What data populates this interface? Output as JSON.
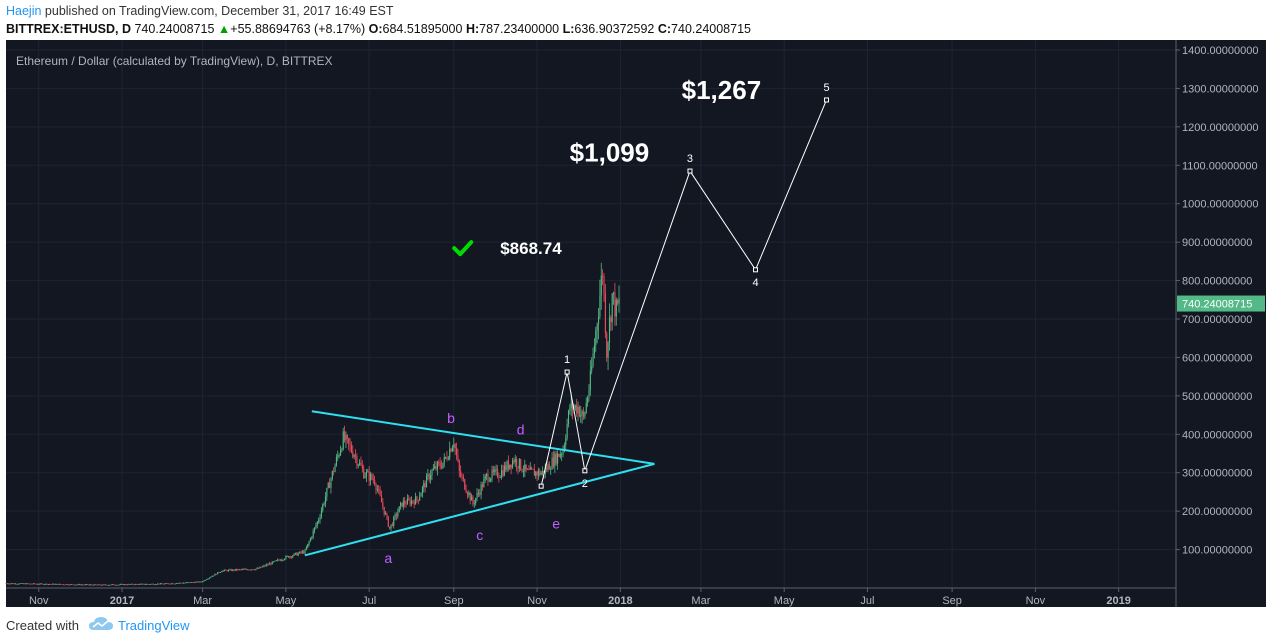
{
  "header": {
    "author": "Haejin",
    "published": " published on TradingView.com, December 31, 2017 16:49 EST",
    "symbol": "BITTREX:ETHUSD, D",
    "last": "740.24008715",
    "change": "+55.88694763 (+8.17%)",
    "o_label": "O:",
    "o_value": "684.51895000",
    "h_label": "H:",
    "h_value": "787.23400000",
    "l_label": "L:",
    "l_value": "636.90372592",
    "c_label": "C:",
    "c_value": "740.24008715"
  },
  "footer": {
    "created": "Created with",
    "brand": "TradingView"
  },
  "colors": {
    "background": "#131722",
    "up": "#53b987",
    "down": "#eb4d5c",
    "trendline": "#2ee0f0",
    "wave": "#ffffff",
    "letters": "#c060ff",
    "check": "#00dd00",
    "price_tag": "#53b987"
  },
  "icons": [
    "checkmark-icon",
    "tradingview-cloud-icon",
    "up-triangle-icon"
  ],
  "chart_data": {
    "type": "candlestick",
    "title": "Ethereum / Dollar (calculated by TradingView), D, BITTREX",
    "ylim": [
      0,
      1400
    ],
    "y_ticks": [
      100,
      200,
      300,
      400,
      500,
      600,
      700,
      800,
      900,
      1000,
      1100,
      1200,
      1300,
      1400
    ],
    "y_tick_labels": [
      "100.00000000",
      "200.00000000",
      "300.00000000",
      "400.00000000",
      "500.00000000",
      "600.00000000",
      "700.00000000",
      "800.00000000",
      "900.00000000",
      "1000.00000000",
      "1100.00000000",
      "1200.00000000",
      "1300.00000000",
      "1400.00000000"
    ],
    "x_ticks": [
      "2016-11-01",
      "2017-01-01",
      "2017-03-01",
      "2017-05-01",
      "2017-07-01",
      "2017-09-01",
      "2017-11-01",
      "2018-01-01",
      "2018-03-01",
      "2018-05-01",
      "2018-07-01",
      "2018-09-01",
      "2018-11-01",
      "2019-01-01"
    ],
    "x_tick_labels": [
      "Nov",
      "2017",
      "Mar",
      "May",
      "Jul",
      "Sep",
      "Nov",
      "2018",
      "Mar",
      "May",
      "Jul",
      "Sep",
      "Nov",
      "2019"
    ],
    "x_tick_bold": [
      false,
      true,
      false,
      false,
      false,
      false,
      false,
      true,
      false,
      false,
      false,
      false,
      false,
      true
    ],
    "xlim": [
      "2016-10-08",
      "2019-02-12"
    ],
    "last_price": 740.24008715,
    "last_price_label": "740.24008715",
    "price_path": [
      [
        "2016-10-08",
        12
      ],
      [
        "2016-12-15",
        8
      ],
      [
        "2017-02-01",
        11
      ],
      [
        "2017-02-28",
        16
      ],
      [
        "2017-03-15",
        45
      ],
      [
        "2017-04-10",
        50
      ],
      [
        "2017-05-01",
        80
      ],
      [
        "2017-05-15",
        95
      ],
      [
        "2017-05-25",
        180
      ],
      [
        "2017-06-12",
        390
      ],
      [
        "2017-06-20",
        350
      ],
      [
        "2017-06-27",
        300
      ],
      [
        "2017-07-05",
        280
      ],
      [
        "2017-07-16",
        155
      ],
      [
        "2017-07-25",
        220
      ],
      [
        "2017-08-05",
        230
      ],
      [
        "2017-08-15",
        300
      ],
      [
        "2017-08-25",
        330
      ],
      [
        "2017-09-01",
        385
      ],
      [
        "2017-09-05",
        300
      ],
      [
        "2017-09-15",
        220
      ],
      [
        "2017-09-25",
        290
      ],
      [
        "2017-10-05",
        300
      ],
      [
        "2017-10-15",
        335
      ],
      [
        "2017-10-25",
        300
      ],
      [
        "2017-11-05",
        300
      ],
      [
        "2017-11-10",
        320
      ],
      [
        "2017-11-20",
        360
      ],
      [
        "2017-11-25",
        470
      ],
      [
        "2017-12-01",
        470
      ],
      [
        "2017-12-05",
        440
      ],
      [
        "2017-12-10",
        540
      ],
      [
        "2017-12-15",
        700
      ],
      [
        "2017-12-19",
        830
      ],
      [
        "2017-12-22",
        620
      ],
      [
        "2017-12-26",
        760
      ],
      [
        "2017-12-29",
        720
      ],
      [
        "2017-12-31",
        740
      ]
    ],
    "trendlines": [
      {
        "name": "upper",
        "points": [
          [
            "2017-05-20",
            460
          ],
          [
            "2018-01-26",
            323
          ]
        ]
      },
      {
        "name": "lower",
        "points": [
          [
            "2017-05-15",
            85
          ],
          [
            "2018-01-26",
            323
          ]
        ]
      }
    ],
    "wave_path": {
      "points": [
        [
          "2017-11-04",
          265
        ],
        [
          "2017-11-23",
          562
        ],
        [
          "2017-12-06",
          305
        ],
        [
          "2018-02-21",
          1085
        ],
        [
          "2018-04-10",
          828
        ],
        [
          "2018-06-01",
          1270
        ]
      ],
      "labels": [
        "",
        "1",
        "2",
        "3",
        "4",
        "5"
      ]
    },
    "triangle_labels": [
      {
        "text": "a",
        "date": "2017-07-15",
        "value": 65
      },
      {
        "text": "b",
        "date": "2017-08-30",
        "value": 430
      },
      {
        "text": "c",
        "date": "2017-09-20",
        "value": 125
      },
      {
        "text": "d",
        "date": "2017-10-20",
        "value": 400
      },
      {
        "text": "e",
        "date": "2017-11-15",
        "value": 155
      }
    ],
    "annotations": [
      {
        "text": "$868.74",
        "date": "2017-10-05",
        "value": 868.74
      },
      {
        "text": "$1,099",
        "date": "2018-01-28",
        "value": 1099
      },
      {
        "text": "$1,267",
        "date": "2018-04-20",
        "value": 1267
      }
    ]
  }
}
